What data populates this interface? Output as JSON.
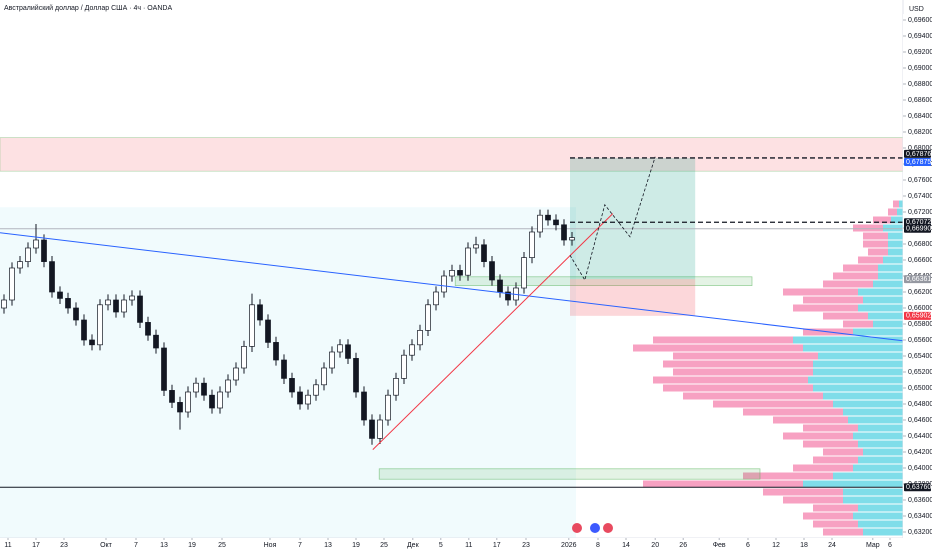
{
  "chart_data": {
    "type": "candlestick",
    "title": "Австралийский доллар / Доллар США · 4ч · OANDA",
    "currency": "USD",
    "up_color": "#ffffff",
    "down_color": "#131722",
    "open": [
      0.66,
      0.661,
      0.665,
      0.6658,
      0.6675,
      0.6685,
      0.6658,
      0.662,
      0.6612,
      0.66,
      0.6585,
      0.656,
      0.6554,
      0.6604,
      0.661,
      0.6595,
      0.661,
      0.6615,
      0.6582,
      0.6566,
      0.655,
      0.6497,
      0.6482,
      0.647,
      0.6495,
      0.6506,
      0.6491,
      0.6475,
      0.6495,
      0.651,
      0.6525,
      0.6552,
      0.6604,
      0.6585,
      0.6557,
      0.6535,
      0.6512,
      0.6495,
      0.648,
      0.6491,
      0.6504,
      0.6525,
      0.6545,
      0.6554,
      0.6537,
      0.6495,
      0.646,
      0.6437,
      0.646,
      0.6491,
      0.6512,
      0.6541,
      0.6554,
      0.6572,
      0.6604,
      0.662,
      0.664,
      0.6647,
      0.6641,
      0.6675,
      0.6679,
      0.6658,
      0.6635,
      0.662,
      0.661,
      0.6625,
      0.6663,
      0.6695,
      0.6716,
      0.671,
      0.6704,
      0.6685
    ],
    "high": [
      0.6617,
      0.6657,
      0.6665,
      0.6682,
      0.6705,
      0.6692,
      0.6665,
      0.6627,
      0.6619,
      0.6607,
      0.6592,
      0.6567,
      0.6611,
      0.6617,
      0.6617,
      0.6617,
      0.6622,
      0.6622,
      0.6589,
      0.6573,
      0.6557,
      0.6504,
      0.6489,
      0.6502,
      0.6513,
      0.6513,
      0.6498,
      0.6502,
      0.6517,
      0.6532,
      0.6559,
      0.6618,
      0.6611,
      0.6592,
      0.6564,
      0.6542,
      0.6519,
      0.6502,
      0.6498,
      0.6511,
      0.6532,
      0.6552,
      0.6561,
      0.6561,
      0.6544,
      0.6502,
      0.6467,
      0.6467,
      0.6498,
      0.6519,
      0.6548,
      0.6561,
      0.6579,
      0.6611,
      0.6627,
      0.6647,
      0.6654,
      0.6654,
      0.6682,
      0.6689,
      0.6686,
      0.6665,
      0.6642,
      0.6627,
      0.6632,
      0.667,
      0.6702,
      0.6723,
      0.6723,
      0.6717,
      0.6711,
      0.6695
    ],
    "low": [
      0.6593,
      0.6603,
      0.6643,
      0.6651,
      0.6668,
      0.6651,
      0.6613,
      0.6605,
      0.6593,
      0.6578,
      0.6553,
      0.6547,
      0.6547,
      0.6597,
      0.6588,
      0.6588,
      0.6603,
      0.6575,
      0.6559,
      0.6543,
      0.649,
      0.6475,
      0.6448,
      0.6463,
      0.6488,
      0.6484,
      0.6468,
      0.6468,
      0.6488,
      0.6503,
      0.6518,
      0.6545,
      0.6578,
      0.655,
      0.6528,
      0.6505,
      0.6488,
      0.6473,
      0.6473,
      0.6484,
      0.6497,
      0.6518,
      0.6538,
      0.653,
      0.6488,
      0.6453,
      0.6429,
      0.643,
      0.6453,
      0.6484,
      0.6505,
      0.6534,
      0.6547,
      0.6565,
      0.6597,
      0.6613,
      0.6633,
      0.6634,
      0.6634,
      0.6668,
      0.6651,
      0.6628,
      0.6613,
      0.6603,
      0.6603,
      0.6618,
      0.6656,
      0.6688,
      0.6703,
      0.6697,
      0.6678,
      0.6678
    ],
    "close": [
      0.661,
      0.665,
      0.6658,
      0.6675,
      0.6685,
      0.6658,
      0.662,
      0.6612,
      0.66,
      0.6585,
      0.656,
      0.6554,
      0.6604,
      0.661,
      0.6595,
      0.661,
      0.6615,
      0.6582,
      0.6566,
      0.655,
      0.6497,
      0.6482,
      0.647,
      0.6495,
      0.6506,
      0.6491,
      0.6475,
      0.6495,
      0.651,
      0.6525,
      0.6552,
      0.6604,
      0.6585,
      0.6557,
      0.6535,
      0.6512,
      0.6495,
      0.648,
      0.6491,
      0.6504,
      0.6525,
      0.6545,
      0.6554,
      0.6537,
      0.6495,
      0.646,
      0.6437,
      0.646,
      0.6491,
      0.6512,
      0.6541,
      0.6554,
      0.6572,
      0.6604,
      0.662,
      0.664,
      0.6647,
      0.6641,
      0.6675,
      0.6679,
      0.6658,
      0.6635,
      0.662,
      0.661,
      0.6625,
      0.6663,
      0.6695,
      0.6716,
      0.671,
      0.6704,
      0.6685,
      0.6688
    ],
    "xlim": [
      0,
      116.5
    ],
    "xticks": [
      {
        "value": 1,
        "label": "11"
      },
      {
        "value": 4.5,
        "label": "17"
      },
      {
        "value": 8,
        "label": "23"
      },
      {
        "value": 13.25,
        "label": "Окт"
      },
      {
        "value": 17,
        "label": "7"
      },
      {
        "value": 20.5,
        "label": "13"
      },
      {
        "value": 24,
        "label": "19"
      },
      {
        "value": 27.75,
        "label": "25"
      },
      {
        "value": 33.75,
        "label": "Ноя"
      },
      {
        "value": 37.5,
        "label": "7"
      },
      {
        "value": 41,
        "label": "13"
      },
      {
        "value": 44.5,
        "label": "19"
      },
      {
        "value": 48,
        "label": "25"
      },
      {
        "value": 51.6,
        "label": "Дек"
      },
      {
        "value": 55.1,
        "label": "5"
      },
      {
        "value": 58.6,
        "label": "11"
      },
      {
        "value": 62.1,
        "label": "17"
      },
      {
        "value": 65.75,
        "label": "23"
      },
      {
        "value": 71.1,
        "label": "2026"
      },
      {
        "value": 74.75,
        "label": "8"
      },
      {
        "value": 78.25,
        "label": "14"
      },
      {
        "value": 81.9,
        "label": "20"
      },
      {
        "value": 85.4,
        "label": "26"
      },
      {
        "value": 89.9,
        "label": "Фев"
      },
      {
        "value": 93.5,
        "label": "6"
      },
      {
        "value": 97,
        "label": "12"
      },
      {
        "value": 100.5,
        "label": "18"
      },
      {
        "value": 104,
        "label": "24"
      },
      {
        "value": 109.1,
        "label": "Мар"
      },
      {
        "value": 111.25,
        "label": "6"
      }
    ],
    "ylim": [
      0.6313,
      0.6985
    ],
    "yticks": [
      {
        "value": 0.632,
        "label": "0,63200"
      },
      {
        "value": 0.634,
        "label": "0,63400"
      },
      {
        "value": 0.636,
        "label": "0,63600"
      },
      {
        "value": 0.638,
        "label": "0,63800"
      },
      {
        "value": 0.64,
        "label": "0,64000"
      },
      {
        "value": 0.642,
        "label": "0,64200"
      },
      {
        "value": 0.644,
        "label": "0,64400"
      },
      {
        "value": 0.646,
        "label": "0,64600"
      },
      {
        "value": 0.648,
        "label": "0,64800"
      },
      {
        "value": 0.65,
        "label": "0,65000"
      },
      {
        "value": 0.652,
        "label": "0,65200"
      },
      {
        "value": 0.654,
        "label": "0,65400"
      },
      {
        "value": 0.656,
        "label": "0,65600"
      },
      {
        "value": 0.658,
        "label": "0,65800"
      },
      {
        "value": 0.66,
        "label": "0,66000"
      },
      {
        "value": 0.662,
        "label": "0,66200"
      },
      {
        "value": 0.664,
        "label": "0,66400"
      },
      {
        "value": 0.666,
        "label": "0,66600"
      },
      {
        "value": 0.668,
        "label": "0,66800"
      },
      {
        "value": 0.67,
        "label": "0,67000"
      },
      {
        "value": 0.672,
        "label": "0,67200"
      },
      {
        "value": 0.674,
        "label": "0,67400"
      },
      {
        "value": 0.676,
        "label": "0,67600"
      },
      {
        "value": 0.678,
        "label": "0,67800"
      },
      {
        "value": 0.68,
        "label": "0,68000"
      },
      {
        "value": 0.682,
        "label": "0,68200"
      },
      {
        "value": 0.684,
        "label": "0,68400"
      },
      {
        "value": 0.686,
        "label": "0,68600"
      },
      {
        "value": 0.688,
        "label": "0,68800"
      },
      {
        "value": 0.69,
        "label": "0,69000"
      },
      {
        "value": 0.692,
        "label": "0,69200"
      },
      {
        "value": 0.694,
        "label": "0,69400"
      },
      {
        "value": 0.696,
        "label": "0,69600"
      }
    ],
    "price_labels": [
      {
        "value": 0.67876,
        "label": "0,67876",
        "color": "#131722"
      },
      {
        "value": 0.67875,
        "label": "0,67875",
        "color": "#2962ff"
      },
      {
        "value": 0.67072,
        "label": "0,67072",
        "color": "#131722"
      },
      {
        "value": 0.6699,
        "label": "0,66990",
        "color": "#131722"
      },
      {
        "value": 0.66361,
        "label": "0,66361",
        "color": "#9598a1"
      },
      {
        "value": 0.65902,
        "label": "0,65902",
        "color": "#f23645"
      },
      {
        "value": 0.6376,
        "label": "0,63760",
        "color": "#131722"
      }
    ],
    "volume_profile": {
      "levels": [
        0.632,
        0.633,
        0.634,
        0.635,
        0.636,
        0.637,
        0.638,
        0.639,
        0.64,
        0.641,
        0.642,
        0.643,
        0.644,
        0.645,
        0.646,
        0.647,
        0.648,
        0.649,
        0.65,
        0.651,
        0.652,
        0.653,
        0.654,
        0.655,
        0.656,
        0.657,
        0.658,
        0.659,
        0.66,
        0.661,
        0.662,
        0.663,
        0.664,
        0.665,
        0.666,
        0.667,
        0.668,
        0.669,
        0.67,
        0.671,
        0.672,
        0.673
      ],
      "up_color": "#7fdde9",
      "down_color": "#f7a1c2",
      "up": [
        40,
        45,
        50,
        45,
        60,
        60,
        100,
        70,
        50,
        45,
        40,
        45,
        50,
        45,
        55,
        60,
        70,
        80,
        90,
        95,
        90,
        90,
        85,
        100,
        110,
        50,
        30,
        35,
        45,
        40,
        45,
        30,
        25,
        25,
        20,
        15,
        15,
        15,
        20,
        12,
        6,
        4
      ],
      "down": [
        40,
        45,
        50,
        45,
        60,
        80,
        160,
        90,
        60,
        45,
        40,
        55,
        70,
        55,
        75,
        100,
        120,
        140,
        150,
        155,
        140,
        150,
        145,
        170,
        140,
        50,
        30,
        45,
        65,
        60,
        75,
        50,
        45,
        35,
        25,
        20,
        25,
        25,
        30,
        18,
        9,
        6
      ]
    },
    "drawings": {
      "profile_range": {
        "x0": 0,
        "x1": 72,
        "low": 0.6313,
        "high": 0.6726
      },
      "resistance_zone": {
        "x0": 0,
        "x1": 112.875,
        "low": 0.6771,
        "high": 0.6813
      },
      "demand_zones": [
        {
          "x0": 56.9,
          "x1": 94,
          "low": 0.6628,
          "high": 0.6639
        },
        {
          "x0": 47.4,
          "x1": 95,
          "low": 0.6386,
          "high": 0.6399
        }
      ],
      "position": {
        "x0": 71.25,
        "x1": 86.9,
        "entry": 0.66361,
        "target": 0.67875,
        "stop": 0.65902
      },
      "dashed_lines": [
        {
          "x0": 71.25,
          "x1": 112.875,
          "value": 0.67876
        },
        {
          "x0": 71.25,
          "x1": 112.875,
          "value": 0.67072
        }
      ],
      "level_lines": [
        {
          "x0": 0,
          "x1": 112.875,
          "value": 0.6699,
          "color": "#b2b5be"
        },
        {
          "x0": 0,
          "x1": 112.875,
          "value": 0.6376,
          "color": "#131722"
        }
      ],
      "trend_lines": [
        {
          "x": [
            0,
            112.875
          ],
          "y": [
            0.6694,
            0.6559
          ],
          "color": "#2962ff"
        },
        {
          "x": [
            46.6,
            76.6
          ],
          "y": [
            0.6423,
            0.6718
          ],
          "color": "#f23645"
        }
      ],
      "projection": {
        "x": [
          71.25,
          73.1,
          75.6,
          78.75,
          81.9
        ],
        "y": [
          0.6666,
          0.6635,
          0.6729,
          0.6689,
          0.6789
        ]
      }
    }
  }
}
